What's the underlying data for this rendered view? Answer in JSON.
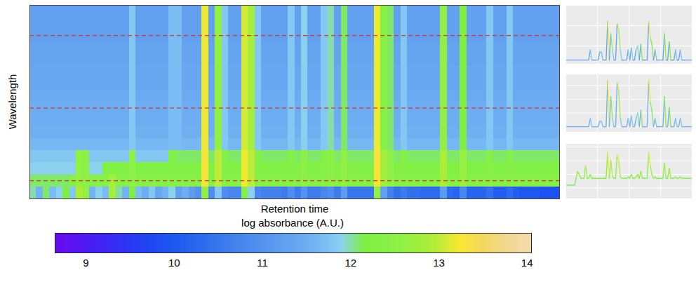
{
  "chart_data": {
    "type": "heatmap",
    "xlabel": "Retention time",
    "ylabel": "Wavelength",
    "tick_labels": false,
    "cells": [
      [
        12.0,
        11.6,
        12.1,
        11.7,
        11.9,
        12.2,
        11.8,
        12.9,
        12.6,
        11.6,
        11.9,
        11.7,
        12.8,
        12.0,
        11.6,
        12.2,
        11.7,
        11.5,
        11.8,
        11.4,
        11.6,
        11.9,
        11.3,
        11.5,
        11.2,
        11.0,
        12.6,
        10.9,
        11.8,
        10.9,
        10.8,
        10.8,
        12.4,
        11.9,
        10.8,
        10.7,
        10.7,
        10.7,
        10.6,
        10.9,
        10.6,
        11.0,
        10.6,
        10.6,
        10.8,
        10.9,
        10.6,
        11.2,
        10.5,
        10.5,
        10.5,
        10.5,
        12.6,
        11.3,
        10.7,
        10.4,
        10.6,
        10.4,
        10.4,
        10.3,
        10.3,
        10.3,
        11.2,
        10.3,
        10.2,
        10.8,
        10.2,
        10.2,
        10.2,
        10.4,
        10.1,
        10.1,
        10.3,
        10.1,
        10.0,
        10.0,
        10.0,
        9.9,
        9.9,
        9.9
      ],
      [
        12.1,
        12.1,
        12.1,
        12.1,
        12.1,
        12.1,
        12.35,
        12.6,
        12.5,
        12.35,
        12.35,
        12.35,
        12.8,
        12.35,
        12.35,
        12.5,
        12.35,
        12.35,
        12.35,
        12.35,
        12.35,
        12.35,
        12.35,
        12.35,
        12.35,
        12.35,
        13.3,
        12.35,
        13.0,
        12.4,
        12.35,
        12.35,
        13.2,
        13.0,
        12.4,
        12.35,
        12.35,
        12.35,
        12.35,
        12.4,
        12.35,
        12.5,
        12.35,
        12.35,
        12.4,
        12.5,
        12.35,
        12.6,
        12.35,
        12.35,
        12.35,
        12.35,
        13.3,
        12.8,
        12.5,
        12.35,
        12.4,
        12.35,
        12.35,
        12.35,
        12.35,
        12.35,
        12.9,
        12.35,
        12.35,
        12.7,
        12.35,
        12.35,
        12.35,
        12.4,
        12.35,
        12.35,
        12.4,
        12.35,
        12.35,
        12.35,
        12.35,
        12.35,
        12.35,
        12.35
      ],
      [
        11.9,
        11.9,
        11.9,
        11.9,
        11.9,
        11.9,
        11.9,
        12.6,
        12.5,
        11.9,
        11.9,
        12.3,
        12.3,
        12.3,
        12.3,
        12.5,
        12.3,
        12.3,
        12.3,
        12.3,
        12.3,
        12.3,
        12.3,
        12.3,
        12.3,
        12.3,
        13.3,
        12.3,
        13.0,
        12.4,
        12.3,
        12.3,
        13.2,
        13.0,
        12.4,
        12.3,
        12.3,
        12.3,
        12.3,
        12.4,
        12.3,
        12.5,
        12.3,
        12.3,
        12.4,
        12.5,
        12.3,
        12.6,
        12.3,
        12.3,
        12.3,
        12.3,
        13.3,
        12.8,
        12.5,
        12.3,
        12.4,
        12.3,
        12.3,
        12.3,
        12.3,
        12.3,
        12.9,
        12.3,
        12.3,
        12.7,
        12.3,
        12.3,
        12.3,
        12.4,
        12.3,
        12.3,
        12.4,
        12.3,
        12.3,
        12.3,
        12.3,
        12.3,
        12.3,
        12.3
      ],
      [
        11.8,
        11.8,
        11.8,
        11.8,
        11.8,
        11.8,
        11.8,
        12.6,
        12.5,
        11.8,
        11.8,
        11.8,
        11.8,
        11.8,
        11.8,
        12.5,
        11.8,
        11.8,
        11.8,
        11.8,
        11.8,
        12.3,
        12.1,
        12.1,
        12.1,
        12.1,
        13.3,
        12.1,
        13.0,
        12.4,
        12.1,
        12.1,
        13.2,
        13.0,
        12.4,
        12.1,
        12.1,
        12.1,
        12.1,
        12.4,
        12.1,
        12.5,
        12.1,
        12.1,
        12.4,
        12.5,
        12.1,
        12.6,
        12.1,
        12.1,
        12.1,
        12.1,
        13.3,
        12.8,
        12.5,
        12.1,
        12.4,
        12.1,
        12.1,
        12.1,
        12.1,
        12.1,
        12.9,
        12.1,
        12.1,
        12.7,
        12.1,
        12.1,
        12.1,
        12.4,
        12.1,
        12.1,
        12.4,
        12.1,
        12.1,
        12.1,
        12.1,
        12.1,
        12.1,
        12.1
      ],
      [
        11.65,
        11.65,
        11.65,
        11.65,
        11.65,
        11.65,
        11.65,
        11.65,
        11.65,
        11.65,
        11.65,
        11.65,
        11.65,
        11.65,
        11.65,
        11.8,
        11.65,
        11.65,
        11.65,
        11.65,
        11.65,
        11.7,
        11.7,
        11.65,
        11.65,
        11.65,
        13.2,
        11.65,
        12.6,
        11.8,
        11.65,
        11.65,
        13.1,
        12.8,
        11.8,
        11.65,
        11.65,
        11.65,
        11.65,
        11.8,
        11.65,
        11.9,
        11.65,
        11.65,
        11.8,
        12.0,
        11.65,
        12.1,
        11.65,
        11.65,
        11.65,
        11.65,
        13.2,
        12.4,
        12.1,
        11.65,
        11.8,
        11.65,
        11.65,
        11.65,
        11.65,
        11.65,
        12.6,
        11.65,
        11.65,
        12.2,
        11.65,
        11.65,
        11.65,
        11.8,
        11.65,
        11.65,
        11.8,
        11.65,
        11.65,
        11.65,
        11.65,
        11.65,
        11.65,
        11.65
      ],
      [
        11.55,
        11.55,
        11.55,
        11.55,
        11.55,
        11.55,
        11.55,
        11.55,
        11.55,
        11.55,
        11.55,
        11.55,
        11.55,
        11.55,
        11.55,
        11.8,
        11.55,
        11.55,
        11.55,
        11.55,
        11.55,
        11.7,
        11.7,
        11.55,
        11.55,
        11.55,
        13.2,
        11.55,
        12.6,
        11.8,
        11.55,
        11.55,
        13.1,
        12.8,
        11.8,
        11.55,
        11.55,
        11.55,
        11.55,
        11.8,
        11.55,
        11.9,
        11.55,
        11.55,
        11.8,
        12.0,
        11.55,
        12.1,
        11.55,
        11.55,
        11.55,
        11.55,
        13.2,
        12.4,
        12.1,
        11.55,
        11.8,
        11.55,
        11.55,
        11.55,
        11.55,
        11.55,
        12.6,
        11.55,
        11.55,
        12.2,
        11.55,
        11.55,
        11.55,
        11.8,
        11.55,
        11.55,
        11.8,
        11.55,
        11.55,
        11.55,
        11.55,
        11.55,
        11.55,
        11.55
      ],
      [
        11.5,
        11.5,
        11.5,
        11.5,
        11.5,
        11.5,
        11.5,
        11.5,
        11.5,
        11.5,
        11.5,
        11.5,
        11.5,
        11.5,
        11.5,
        11.8,
        11.5,
        11.5,
        11.5,
        11.5,
        11.5,
        11.7,
        11.7,
        11.5,
        11.5,
        11.5,
        13.2,
        11.5,
        12.6,
        11.8,
        11.5,
        11.5,
        13.1,
        12.8,
        11.8,
        11.5,
        11.5,
        11.5,
        11.5,
        11.8,
        11.5,
        11.9,
        11.5,
        11.5,
        11.8,
        12.0,
        11.5,
        12.1,
        11.5,
        11.5,
        11.5,
        11.5,
        13.2,
        12.4,
        12.1,
        11.5,
        11.8,
        11.5,
        11.5,
        11.5,
        11.5,
        11.5,
        12.6,
        11.5,
        11.5,
        12.2,
        11.5,
        11.5,
        11.5,
        11.8,
        11.5,
        11.5,
        11.8,
        11.5,
        11.5,
        11.5,
        11.5,
        11.5,
        11.5,
        11.5
      ],
      [
        11.5,
        11.5,
        11.5,
        11.5,
        11.5,
        11.5,
        11.5,
        11.5,
        11.5,
        11.5,
        11.5,
        11.5,
        11.5,
        11.5,
        11.5,
        11.8,
        11.5,
        11.5,
        11.5,
        11.5,
        11.5,
        11.7,
        11.7,
        11.5,
        11.5,
        11.5,
        13.2,
        11.5,
        12.6,
        11.8,
        11.5,
        11.5,
        13.1,
        12.8,
        11.8,
        11.5,
        11.5,
        11.5,
        11.5,
        11.8,
        11.5,
        11.9,
        11.5,
        11.5,
        11.8,
        12.0,
        11.5,
        12.1,
        11.5,
        11.5,
        11.5,
        11.5,
        13.2,
        12.4,
        12.1,
        11.5,
        11.8,
        11.5,
        11.5,
        11.5,
        11.5,
        11.5,
        12.6,
        11.5,
        11.5,
        12.2,
        11.5,
        11.5,
        11.5,
        11.8,
        11.5,
        11.5,
        11.8,
        11.5,
        11.5,
        11.5,
        11.5,
        11.5,
        11.5,
        11.5
      ],
      [
        11.45,
        11.45,
        11.45,
        11.45,
        11.45,
        11.45,
        11.45,
        11.45,
        11.45,
        11.45,
        11.45,
        11.45,
        11.45,
        11.45,
        11.45,
        11.8,
        11.45,
        11.45,
        11.45,
        11.45,
        11.45,
        11.7,
        11.7,
        11.45,
        11.45,
        11.45,
        13.2,
        11.45,
        12.6,
        11.8,
        11.45,
        11.45,
        13.1,
        12.8,
        11.8,
        11.45,
        11.45,
        11.45,
        11.45,
        11.8,
        11.45,
        11.9,
        11.45,
        11.45,
        11.8,
        12.0,
        11.45,
        12.1,
        11.45,
        11.45,
        11.45,
        11.45,
        13.2,
        12.4,
        12.1,
        11.45,
        11.8,
        11.45,
        11.45,
        11.45,
        11.45,
        11.45,
        12.6,
        11.45,
        11.45,
        12.2,
        11.45,
        11.45,
        11.45,
        11.8,
        11.45,
        11.45,
        11.8,
        11.45,
        11.45,
        11.45,
        11.45,
        11.45,
        11.45,
        11.45
      ],
      [
        11.4,
        11.4,
        11.4,
        11.4,
        11.4,
        11.4,
        11.4,
        11.4,
        11.4,
        11.4,
        11.4,
        11.4,
        11.4,
        11.4,
        11.4,
        11.8,
        11.4,
        11.4,
        11.4,
        11.4,
        11.4,
        11.7,
        11.7,
        11.4,
        11.4,
        11.4,
        13.2,
        11.4,
        12.6,
        11.8,
        11.4,
        11.4,
        13.1,
        12.8,
        11.8,
        11.4,
        11.4,
        11.4,
        11.4,
        11.8,
        11.4,
        11.9,
        11.4,
        11.4,
        11.8,
        12.0,
        11.4,
        12.1,
        11.4,
        11.4,
        11.4,
        11.4,
        13.2,
        12.4,
        12.1,
        11.4,
        11.8,
        11.4,
        11.4,
        11.4,
        11.4,
        11.4,
        12.6,
        11.4,
        11.4,
        12.2,
        11.4,
        11.4,
        11.4,
        11.8,
        11.4,
        11.4,
        11.8,
        11.4,
        11.4,
        11.4,
        11.4,
        11.4,
        11.4,
        11.4
      ],
      [
        11.4,
        11.4,
        11.4,
        11.4,
        11.4,
        11.4,
        11.4,
        11.4,
        11.4,
        11.4,
        11.4,
        11.4,
        11.4,
        11.4,
        11.4,
        11.8,
        11.4,
        11.4,
        11.4,
        11.4,
        11.4,
        11.7,
        11.7,
        11.4,
        11.4,
        11.4,
        13.2,
        11.4,
        12.6,
        11.8,
        11.4,
        11.4,
        13.1,
        12.8,
        11.8,
        11.4,
        11.4,
        11.4,
        11.4,
        11.8,
        11.4,
        11.9,
        11.4,
        11.4,
        11.8,
        12.0,
        11.4,
        12.1,
        11.4,
        11.4,
        11.4,
        11.4,
        13.2,
        12.4,
        12.1,
        11.4,
        11.8,
        11.4,
        11.4,
        11.4,
        11.4,
        11.4,
        12.6,
        11.4,
        11.4,
        12.2,
        11.4,
        11.4,
        11.4,
        11.8,
        11.4,
        11.4,
        11.8,
        11.4,
        11.4,
        11.4,
        11.4,
        11.4,
        11.4,
        11.4
      ],
      [
        11.35,
        11.35,
        11.35,
        11.35,
        11.35,
        11.35,
        11.35,
        11.35,
        11.35,
        11.35,
        11.35,
        11.35,
        11.35,
        11.35,
        11.35,
        11.8,
        11.35,
        11.35,
        11.35,
        11.35,
        11.35,
        11.7,
        11.7,
        11.35,
        11.35,
        11.35,
        13.2,
        11.35,
        12.6,
        11.8,
        11.35,
        11.35,
        13.1,
        12.8,
        11.8,
        11.35,
        11.35,
        11.35,
        11.35,
        11.8,
        11.35,
        11.9,
        11.35,
        11.35,
        11.8,
        12.0,
        11.35,
        12.1,
        11.35,
        11.35,
        11.35,
        11.35,
        13.2,
        12.4,
        12.1,
        11.35,
        11.8,
        11.35,
        11.35,
        11.35,
        11.35,
        11.35,
        12.6,
        11.35,
        11.35,
        12.2,
        11.35,
        11.35,
        11.35,
        11.8,
        11.35,
        11.35,
        11.8,
        11.35,
        11.35,
        11.35,
        11.35,
        11.35,
        11.35,
        11.35
      ],
      [
        11.35,
        11.35,
        11.35,
        11.35,
        11.35,
        11.35,
        11.35,
        11.35,
        11.35,
        11.35,
        11.35,
        11.35,
        11.35,
        11.35,
        11.35,
        11.8,
        11.35,
        11.35,
        11.35,
        11.35,
        11.35,
        11.7,
        11.7,
        11.35,
        11.35,
        11.35,
        13.2,
        11.35,
        12.6,
        11.8,
        11.35,
        11.35,
        13.1,
        12.8,
        11.8,
        11.35,
        11.35,
        11.35,
        11.35,
        11.8,
        11.35,
        11.9,
        11.35,
        11.35,
        11.8,
        12.0,
        11.35,
        12.1,
        11.35,
        11.35,
        11.35,
        11.35,
        13.2,
        12.4,
        12.1,
        11.35,
        11.8,
        11.35,
        11.35,
        11.35,
        11.35,
        11.35,
        12.6,
        11.35,
        11.35,
        12.2,
        11.35,
        11.35,
        11.35,
        11.8,
        11.35,
        11.35,
        11.8,
        11.35,
        11.35,
        11.35,
        11.35,
        11.35,
        11.35,
        11.35
      ],
      [
        11.3,
        11.3,
        11.3,
        11.3,
        11.3,
        11.3,
        11.3,
        11.3,
        11.3,
        11.3,
        11.3,
        11.3,
        11.3,
        11.3,
        11.3,
        11.8,
        11.3,
        11.3,
        11.3,
        11.3,
        11.3,
        11.7,
        11.7,
        11.3,
        11.3,
        11.3,
        13.2,
        11.3,
        12.6,
        11.8,
        11.3,
        11.3,
        13.1,
        12.8,
        11.8,
        11.3,
        11.3,
        11.3,
        11.3,
        11.8,
        11.3,
        11.9,
        11.3,
        11.3,
        11.8,
        12.0,
        11.3,
        12.1,
        11.3,
        11.3,
        11.3,
        11.3,
        13.2,
        12.4,
        12.1,
        11.3,
        11.8,
        11.3,
        11.3,
        11.3,
        11.3,
        11.3,
        12.6,
        11.3,
        11.3,
        12.2,
        11.3,
        11.3,
        11.3,
        11.8,
        11.3,
        11.3,
        11.8,
        11.3,
        11.3,
        11.3,
        11.3,
        11.3,
        11.3,
        11.3
      ],
      [
        11.3,
        11.3,
        11.3,
        11.3,
        11.3,
        11.3,
        11.3,
        11.3,
        11.3,
        11.3,
        11.3,
        11.3,
        11.3,
        11.3,
        11.3,
        11.8,
        11.3,
        11.3,
        11.3,
        11.3,
        11.3,
        11.7,
        11.7,
        11.3,
        11.3,
        11.3,
        13.2,
        11.3,
        12.6,
        11.8,
        11.3,
        11.3,
        13.1,
        12.8,
        11.8,
        11.3,
        11.3,
        11.3,
        11.3,
        11.8,
        11.3,
        11.9,
        11.3,
        11.3,
        11.8,
        12.0,
        11.3,
        12.1,
        11.3,
        11.3,
        11.3,
        11.3,
        13.2,
        12.4,
        12.1,
        11.3,
        11.8,
        11.3,
        11.3,
        11.3,
        11.3,
        11.3,
        12.6,
        11.3,
        11.3,
        12.2,
        11.3,
        11.3,
        11.3,
        11.8,
        11.3,
        11.3,
        11.8,
        11.3,
        11.3,
        11.3,
        11.3,
        11.3,
        11.3,
        11.3
      ],
      [
        11.3,
        11.3,
        11.3,
        11.3,
        11.3,
        11.3,
        11.3,
        11.3,
        11.3,
        11.3,
        11.3,
        11.3,
        11.3,
        11.3,
        11.3,
        11.8,
        11.3,
        11.3,
        11.3,
        11.3,
        11.3,
        11.7,
        11.7,
        11.3,
        11.3,
        11.3,
        13.2,
        11.3,
        12.6,
        11.8,
        11.3,
        11.3,
        13.1,
        12.8,
        11.8,
        11.3,
        11.3,
        11.3,
        11.3,
        11.8,
        11.3,
        11.9,
        11.3,
        11.3,
        11.8,
        12.0,
        11.3,
        12.1,
        11.3,
        11.3,
        11.3,
        11.3,
        13.2,
        12.4,
        12.1,
        11.3,
        11.8,
        11.3,
        11.3,
        11.3,
        11.3,
        11.3,
        12.6,
        11.3,
        11.3,
        12.2,
        11.3,
        11.3,
        11.3,
        11.8,
        11.3,
        11.3,
        11.8,
        11.3,
        11.3,
        11.3,
        11.3,
        11.3,
        11.3,
        11.3
      ]
    ],
    "marked_rows": {
      "rows": [
        13,
        7,
        1
      ],
      "color": "#d9342b",
      "line_style": "dashed"
    },
    "panels": [
      {
        "type": "line",
        "row": 13,
        "ylim": [
          11.1,
          14.0
        ],
        "grid": true,
        "tick_labels": false
      },
      {
        "type": "line",
        "row": 7,
        "ylim": [
          11.3,
          13.4
        ],
        "grid": true,
        "tick_labels": false
      },
      {
        "type": "line",
        "row": 1,
        "ylim": [
          11.6,
          13.6
        ],
        "grid": true,
        "tick_labels": false
      }
    ],
    "colorbar": {
      "title": "log absorbance (A.U.)",
      "range": [
        8.65,
        14.05
      ],
      "ticks": [
        9,
        10,
        11,
        12,
        13,
        14
      ],
      "colors": [
        "#6a0af0",
        "#5516f2",
        "#4024f4",
        "#2d34f4",
        "#2046f2",
        "#1d58f0",
        "#2a68ee",
        "#3a78ee",
        "#4a88ee",
        "#5896ef",
        "#66a4f0",
        "#74b4f2",
        "#8cd0f4",
        "#7ef040",
        "#88f048",
        "#98f040",
        "#b4ec38",
        "#f8e830",
        "#f4d860",
        "#f2d890",
        "#f2dcb0"
      ]
    }
  }
}
